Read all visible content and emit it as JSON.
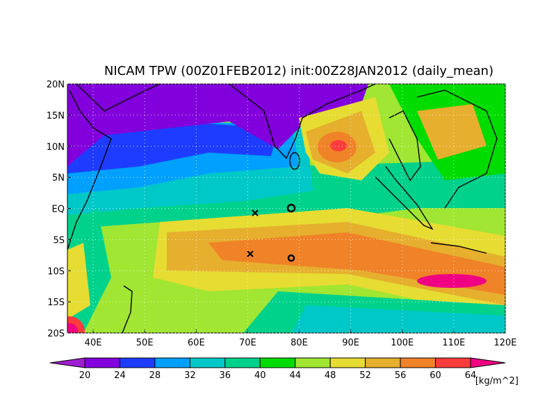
{
  "title": "NICAM TPW (00Z01FEB2012) init:00Z28JAN2012 (daily_mean)",
  "map": {
    "lon_range": [
      35,
      120
    ],
    "lat_range": [
      -20,
      20
    ],
    "lon_ticks": [
      {
        "value": 40,
        "label": "40E"
      },
      {
        "value": 50,
        "label": "50E"
      },
      {
        "value": 60,
        "label": "60E"
      },
      {
        "value": 70,
        "label": "70E"
      },
      {
        "value": 80,
        "label": "80E"
      },
      {
        "value": 90,
        "label": "90E"
      },
      {
        "value": 100,
        "label": "100E"
      },
      {
        "value": 110,
        "label": "110E"
      },
      {
        "value": 120,
        "label": "120E"
      }
    ],
    "lat_ticks": [
      {
        "value": 20,
        "label": "20N"
      },
      {
        "value": 15,
        "label": "15N"
      },
      {
        "value": 10,
        "label": "10N"
      },
      {
        "value": 5,
        "label": "5N"
      },
      {
        "value": 0,
        "label": "EQ"
      },
      {
        "value": -5,
        "label": "5S"
      },
      {
        "value": -10,
        "label": "10S"
      },
      {
        "value": -15,
        "label": "15S"
      },
      {
        "value": -20,
        "label": "20S"
      }
    ],
    "grid": true
  },
  "colorbar": {
    "levels": [
      20,
      24,
      28,
      32,
      36,
      40,
      44,
      48,
      52,
      56,
      60,
      64
    ],
    "colors": [
      "#a01ed2",
      "#8200dc",
      "#1e3cff",
      "#00a0ff",
      "#00c8c8",
      "#00d28c",
      "#00dc00",
      "#a0e632",
      "#e6dc32",
      "#e6af2d",
      "#f08228",
      "#fa3c3c",
      "#f00082"
    ],
    "unit": "[kg/m^2]"
  }
}
